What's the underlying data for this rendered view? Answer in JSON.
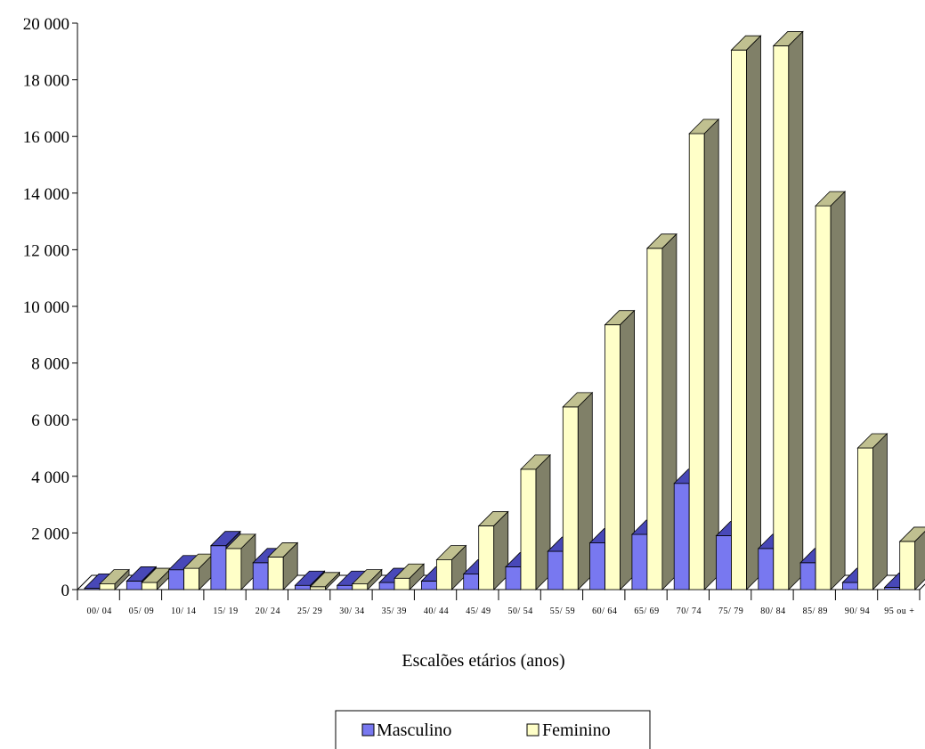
{
  "chart_data": {
    "type": "bar",
    "title": "",
    "xlabel": "Escalões etários (anos)",
    "ylabel": "",
    "ylim": [
      0,
      20000
    ],
    "yticks": [
      0,
      2000,
      4000,
      6000,
      8000,
      10000,
      12000,
      14000,
      16000,
      18000,
      20000
    ],
    "ytick_labels": [
      "0",
      "2 000",
      "4 000",
      "6 000",
      "8 000",
      "10 000",
      "12 000",
      "14 000",
      "16 000",
      "18 000",
      "20 000"
    ],
    "grid": false,
    "legend_position": "bottom",
    "categories": [
      "00/ 04",
      "05/ 09",
      "10/ 14",
      "15/ 19",
      "20/ 24",
      "25/ 29",
      "30/ 34",
      "35/ 39",
      "40/ 44",
      "45/ 49",
      "50/ 54",
      "55/ 59",
      "60/ 64",
      "65/ 69",
      "70/ 74",
      "75/ 79",
      "80/ 84",
      "85/ 89",
      "90/ 94",
      "95 ou +"
    ],
    "series": [
      {
        "name": "Masculino",
        "color": "#7878f0",
        "top_color": "#4848b8",
        "side_color": "#34347a",
        "values": [
          50,
          300,
          700,
          1550,
          950,
          150,
          150,
          250,
          300,
          550,
          800,
          1350,
          1650,
          1950,
          3750,
          1900,
          1450,
          950,
          250,
          80
        ]
      },
      {
        "name": "Feminino",
        "color": "#ffffc8",
        "top_color": "#c0c090",
        "side_color": "#808068",
        "values": [
          200,
          250,
          750,
          1450,
          1150,
          100,
          200,
          400,
          1050,
          2250,
          4250,
          6450,
          9350,
          12050,
          16100,
          19050,
          19200,
          13550,
          5000,
          1700
        ]
      }
    ]
  }
}
